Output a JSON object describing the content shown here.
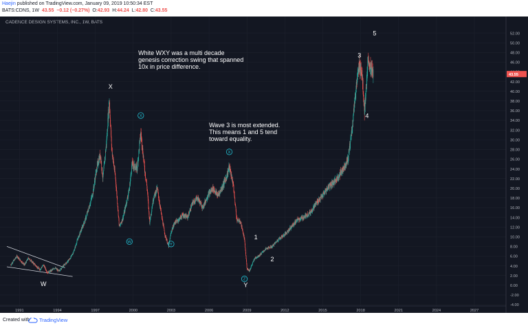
{
  "header": {
    "author": "Haejin",
    "published": " published on TradingView.com, January 09, 2019 10:50:34 EST",
    "symbol_line": "BATS:CDNS, 1W",
    "last": "43.55",
    "change": "−0.12 (−0.27%)",
    "o_label": "O:",
    "o": "42.93",
    "h_label": "H:",
    "h": "44.24",
    "l_label": "L:",
    "l": "42.80",
    "c_label": "C:",
    "c": "43.55"
  },
  "footer": {
    "created_with": "Created with",
    "brand": "TradingView"
  },
  "chart_data": {
    "type": "line",
    "title": "CADENCE DESIGN SYSTEMS, INC., 1W, BATS",
    "style": "candlestick (weekly)",
    "background": "#131722",
    "up_color": "#26a69a",
    "down_color": "#ef5350",
    "price_axis": {
      "ylim": [
        -4,
        54
      ],
      "ticks": [
        -4,
        -2,
        0,
        2,
        4,
        6,
        8,
        10,
        12,
        14,
        16,
        18,
        20,
        22,
        24,
        26,
        28,
        30,
        32,
        34,
        36,
        38,
        40,
        42,
        44,
        46,
        48,
        50,
        52
      ]
    },
    "time_axis": {
      "xlim": [
        1990.0,
        2029.5
      ],
      "ticks": [
        "1991",
        "1994",
        "1997",
        "2000",
        "2003",
        "2006",
        "2009",
        "2012",
        "2015",
        "2018",
        "2021",
        "2024",
        "2027"
      ]
    },
    "last_price": "43.55",
    "series": [
      {
        "x": [
          1990.3,
          1990.8,
          1991.1,
          1991.4,
          1991.7,
          1992.0,
          1992.3,
          1992.6,
          1992.9,
          1993.2,
          1993.5,
          1993.8,
          1994.1,
          1994.4,
          1994.7,
          1995.0,
          1995.3,
          1995.6,
          1995.9,
          1996.2,
          1996.5,
          1996.8,
          1997.1,
          1997.4,
          1997.6,
          1997.9,
          1998.1,
          1998.3,
          1998.6,
          1998.9,
          1999.2,
          1999.5,
          1999.7,
          1999.9,
          2000.3,
          2000.6,
          2000.9,
          2001.1,
          2001.3,
          2001.6,
          2001.9,
          2002.2,
          2002.5,
          2002.8,
          2003.0,
          2003.3,
          2003.6,
          2003.9,
          2004.3,
          2004.7,
          2005.1,
          2005.5,
          2005.9,
          2006.3,
          2006.7,
          2007.0,
          2007.4,
          2007.6,
          2007.9,
          2008.2,
          2008.5,
          2008.8,
          2009.0,
          2009.2,
          2009.6,
          2010.0,
          2010.5,
          2011.0,
          2011.5,
          2012.0,
          2012.5,
          2013.0,
          2013.5,
          2014.0,
          2014.5,
          2015.0,
          2015.5,
          2016.0,
          2016.5,
          2017.0,
          2017.3,
          2017.6,
          2017.9,
          2018.1,
          2018.3,
          2018.6,
          2018.8,
          2019.0
        ],
        "y": [
          4.2,
          6.0,
          5.0,
          4.2,
          5.6,
          4.8,
          4.0,
          3.2,
          4.2,
          2.6,
          3.0,
          3.6,
          2.9,
          3.8,
          4.6,
          5.5,
          7.0,
          9.5,
          11.5,
          13.5,
          16.0,
          19.0,
          24.0,
          27.0,
          22.0,
          30.0,
          38.5,
          28.0,
          22.0,
          12.0,
          14.0,
          17.5,
          20.0,
          25.0,
          24.0,
          31.5,
          24.0,
          20.0,
          13.0,
          18.0,
          20.0,
          15.0,
          10.5,
          8.0,
          11.0,
          13.0,
          13.5,
          14.5,
          14.0,
          17.0,
          18.0,
          16.0,
          18.5,
          20.0,
          18.5,
          20.0,
          22.5,
          24.5,
          21.0,
          13.5,
          13.0,
          9.5,
          3.5,
          3.0,
          5.5,
          6.2,
          7.5,
          8.0,
          9.5,
          10.5,
          12.0,
          13.5,
          14.0,
          15.0,
          17.0,
          18.5,
          20.5,
          21.5,
          23.5,
          26.0,
          32.0,
          40.0,
          45.5,
          44.0,
          36.0,
          46.5,
          44.5,
          43.6
        ]
      }
    ],
    "annotations": {
      "wave_labels": [
        {
          "text": "W",
          "x": 1992.9,
          "y": -0.2
        },
        {
          "text": "X",
          "x": 1998.2,
          "y": 40.5
        },
        {
          "text": "Y",
          "x": 2008.9,
          "y": -0.4
        },
        {
          "text": "1",
          "x": 2009.7,
          "y": 9.5
        },
        {
          "text": "2",
          "x": 2011.0,
          "y": 4.9
        },
        {
          "text": "3",
          "x": 2017.9,
          "y": 47.0
        },
        {
          "text": "4",
          "x": 2018.5,
          "y": 34.5
        },
        {
          "text": "5",
          "x": 2019.1,
          "y": 51.5
        }
      ],
      "circled_labels": [
        {
          "text": "W",
          "x": 1999.7,
          "y": 9.0
        },
        {
          "text": "X",
          "x": 2000.6,
          "y": 35.0
        },
        {
          "text": "Y",
          "x": 2003.0,
          "y": 8.5
        },
        {
          "text": "X",
          "x": 2007.6,
          "y": 27.5
        },
        {
          "text": "Z",
          "x": 2008.8,
          "y": 1.3
        }
      ],
      "notes": [
        {
          "lines": [
            "White WXY was a multi decade",
            "genesis correction swing that spanned",
            "10x in price difference."
          ],
          "x": 2000.4,
          "y": 47.5
        },
        {
          "lines": [
            "Wave 3 is most extended.",
            "This means 1 and 5 tend",
            "toward equality."
          ],
          "x": 2006.0,
          "y": 32.6
        }
      ],
      "wedge": {
        "upper": [
          [
            1990.0,
            8.0
          ],
          [
            1994.6,
            3.6
          ]
        ],
        "lower": [
          [
            1990.0,
            3.8
          ],
          [
            1995.2,
            1.8
          ]
        ]
      }
    }
  }
}
